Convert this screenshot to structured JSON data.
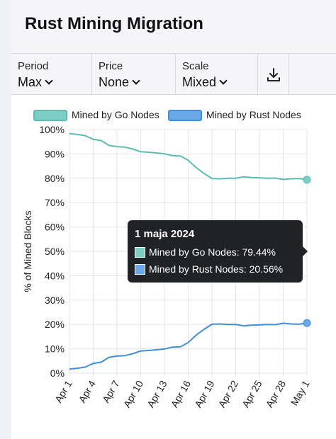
{
  "header": {
    "title": "Rust Mining Migration"
  },
  "toolbar": {
    "period": {
      "label": "Period",
      "value": "Max"
    },
    "price": {
      "label": "Price",
      "value": "None"
    },
    "scale": {
      "label": "Scale",
      "value": "Mixed"
    },
    "download_icon": "download-icon"
  },
  "colors": {
    "go": "#7dcdc4",
    "go_stroke": "#5cbdb3",
    "rust": "#6aa8e8",
    "rust_stroke": "#3e8fe0",
    "grid": "#e3e5e8"
  },
  "tooltip": {
    "title": "1 maja 2024",
    "rows": [
      {
        "text": "Mined by Go Nodes: 79.44%"
      },
      {
        "text": "Mined by Rust Nodes: 20.56%"
      }
    ]
  },
  "chart_data": {
    "type": "line",
    "ylabel": "% of Mined Blocks",
    "ylim": [
      0,
      100
    ],
    "y_ticks": [
      "0%",
      "10%",
      "20%",
      "30%",
      "40%",
      "50%",
      "60%",
      "70%",
      "80%",
      "90%",
      "100%"
    ],
    "x_tick_labels": [
      "Apr 1",
      "Apr 4",
      "Apr 7",
      "Apr 10",
      "Apr 13",
      "Apr 16",
      "Apr 19",
      "Apr 22",
      "Apr 25",
      "Apr 28",
      "May 1"
    ],
    "x": [
      "Apr 1",
      "Apr 2",
      "Apr 3",
      "Apr 4",
      "Apr 5",
      "Apr 6",
      "Apr 7",
      "Apr 8",
      "Apr 9",
      "Apr 10",
      "Apr 11",
      "Apr 12",
      "Apr 13",
      "Apr 14",
      "Apr 15",
      "Apr 16",
      "Apr 17",
      "Apr 18",
      "Apr 19",
      "Apr 20",
      "Apr 21",
      "Apr 22",
      "Apr 23",
      "Apr 24",
      "Apr 25",
      "Apr 26",
      "Apr 27",
      "Apr 28",
      "Apr 29",
      "Apr 30",
      "May 1"
    ],
    "legend_position": "top",
    "grid": true,
    "series": [
      {
        "name": "Mined by Go Nodes",
        "values": [
          98.3,
          98.0,
          97.5,
          96.0,
          95.5,
          93.5,
          93.0,
          92.8,
          92.0,
          90.9,
          90.7,
          90.4,
          90.1,
          89.3,
          89.2,
          87.4,
          84.4,
          82.0,
          79.9,
          79.8,
          80.0,
          80.0,
          80.6,
          80.3,
          80.2,
          80.0,
          80.1,
          79.5,
          79.8,
          79.9,
          79.44
        ]
      },
      {
        "name": "Mined by Rust Nodes",
        "values": [
          1.7,
          2.0,
          2.5,
          4.0,
          4.5,
          6.5,
          7.0,
          7.2,
          8.0,
          9.1,
          9.3,
          9.6,
          9.9,
          10.7,
          10.8,
          12.6,
          15.6,
          18.0,
          20.1,
          20.2,
          20.0,
          20.0,
          19.4,
          19.7,
          19.8,
          20.0,
          19.9,
          20.5,
          20.2,
          20.1,
          20.56
        ]
      }
    ]
  }
}
